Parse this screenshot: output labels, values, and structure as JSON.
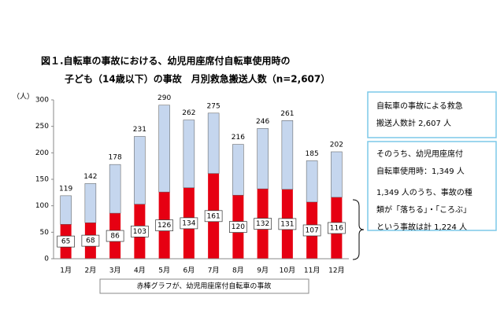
{
  "chart_data": {
    "type": "stacked-bar",
    "title": [
      "図１.自転車の事故における、幼児用座席付自転車使用時の",
      "子ども（14歳以下）の事故　月別救急搬送人数（n=2,607）"
    ],
    "y_label": "（人）",
    "categories": [
      "1月",
      "2月",
      "3月",
      "4月",
      "5月",
      "6月",
      "7月",
      "8月",
      "9月",
      "10月",
      "11月",
      "12月"
    ],
    "series": [
      {
        "color": "#e60012",
        "values": [
          65,
          68,
          86,
          103,
          126,
          134,
          161,
          120,
          132,
          131,
          107,
          116
        ]
      },
      {
        "color": "#c5d6ee",
        "values": [
          54,
          74,
          92,
          128,
          164,
          128,
          114,
          96,
          114,
          130,
          78,
          86
        ]
      }
    ],
    "totals": [
      119,
      142,
      178,
      231,
      290,
      262,
      275,
      216,
      246,
      261,
      185,
      202
    ],
    "ylim": [
      0,
      300
    ],
    "yticks": [
      0,
      50,
      100,
      150,
      200,
      250,
      300
    ],
    "grid": false,
    "note": "赤棒グラフが、幼児用座席付自転車の事故",
    "annotations": [
      [
        "自転車の事故による救急",
        "搬送人数計 2,607 人"
      ],
      [
        "そのうち、幼児用座席付",
        "自転車使用時：1,349 人",
        "1,349 人のうち、事故の種",
        "類が「落ちる」・「ころぶ」",
        "という事故は計 1,224 人"
      ]
    ]
  }
}
